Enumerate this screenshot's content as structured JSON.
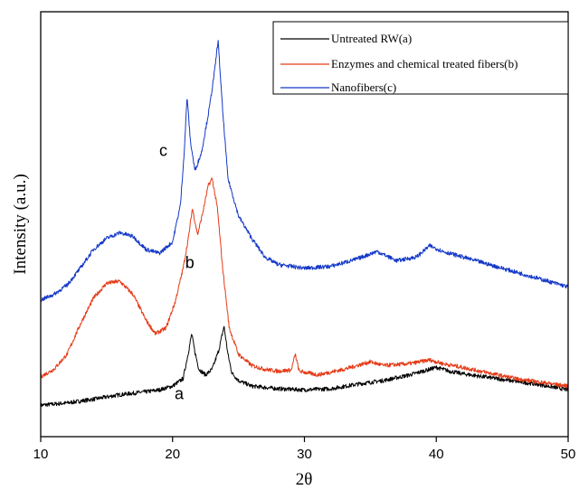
{
  "chart_data": {
    "type": "line",
    "xlabel": "2θ",
    "ylabel": "Intensity (a.u.)",
    "xlim": [
      10,
      50
    ],
    "ylim": [
      0,
      100
    ],
    "xticks": [
      "10",
      "20",
      "30",
      "40",
      "50"
    ],
    "yticks_shown": false,
    "grid": false,
    "legend_position": "top-right",
    "series": [
      {
        "name": "Untreated RW(a)",
        "label": "a",
        "color": "#000000",
        "points": [
          [
            10,
            1.4
          ],
          [
            12,
            2.0
          ],
          [
            14,
            3.0
          ],
          [
            16,
            4.2
          ],
          [
            17,
            4.6
          ],
          [
            18,
            5.0
          ],
          [
            19,
            5.5
          ],
          [
            20,
            6.5
          ],
          [
            20.8,
            8.5
          ],
          [
            21.2,
            15.5
          ],
          [
            21.45,
            20.5
          ],
          [
            21.7,
            15.5
          ],
          [
            22.0,
            11.0
          ],
          [
            22.5,
            9.5
          ],
          [
            23.0,
            11.0
          ],
          [
            23.5,
            16.0
          ],
          [
            23.9,
            22.5
          ],
          [
            24.2,
            15.0
          ],
          [
            24.5,
            10.0
          ],
          [
            25,
            8.0
          ],
          [
            26,
            6.5
          ],
          [
            28,
            5.8
          ],
          [
            30,
            5.5
          ],
          [
            32,
            5.8
          ],
          [
            34,
            7.0
          ],
          [
            36,
            8.0
          ],
          [
            38,
            9.5
          ],
          [
            39,
            10.5
          ],
          [
            40,
            11.5
          ],
          [
            41,
            10.5
          ],
          [
            42,
            9.8
          ],
          [
            44,
            8.8
          ],
          [
            46,
            7.8
          ],
          [
            48,
            6.8
          ],
          [
            50,
            5.5
          ]
        ]
      },
      {
        "name": "Enzymes and chemical treated fibers(b)",
        "label": "b",
        "color": "#e53a16",
        "points": [
          [
            10,
            9.0
          ],
          [
            11,
            11.0
          ],
          [
            12,
            15.0
          ],
          [
            13,
            23.0
          ],
          [
            14,
            30.0
          ],
          [
            15,
            34.0
          ],
          [
            16,
            34.5
          ],
          [
            17,
            31.0
          ],
          [
            18,
            24.0
          ],
          [
            18.7,
            20.5
          ],
          [
            19.5,
            22.0
          ],
          [
            20.2,
            29.0
          ],
          [
            20.8,
            38.0
          ],
          [
            21.2,
            46.0
          ],
          [
            21.5,
            54.0
          ],
          [
            21.9,
            47.0
          ],
          [
            22.3,
            53.0
          ],
          [
            22.7,
            60.0
          ],
          [
            23.0,
            62.0
          ],
          [
            23.4,
            54.0
          ],
          [
            23.8,
            38.0
          ],
          [
            24.3,
            22.0
          ],
          [
            25,
            15.0
          ],
          [
            26,
            12.0
          ],
          [
            27,
            11.0
          ],
          [
            28,
            10.5
          ],
          [
            29,
            10.8
          ],
          [
            29.3,
            15.0
          ],
          [
            29.6,
            10.5
          ],
          [
            31,
            9.5
          ],
          [
            33,
            11.0
          ],
          [
            34,
            12.0
          ],
          [
            35,
            13.0
          ],
          [
            36,
            12.0
          ],
          [
            38,
            12.5
          ],
          [
            39.5,
            13.5
          ],
          [
            40.5,
            12.5
          ],
          [
            42,
            11.5
          ],
          [
            44,
            10.0
          ],
          [
            46,
            8.5
          ],
          [
            48,
            7.5
          ],
          [
            50,
            6.5
          ]
        ]
      },
      {
        "name": "Nanofibers(c)",
        "label": "c",
        "color": "#1438c8",
        "points": [
          [
            10,
            29.5
          ],
          [
            11,
            31.0
          ],
          [
            12,
            33.5
          ],
          [
            13,
            38.0
          ],
          [
            14,
            43.0
          ],
          [
            15,
            46.0
          ],
          [
            16,
            47.5
          ],
          [
            17,
            46.5
          ],
          [
            18,
            43.0
          ],
          [
            19,
            42.0
          ],
          [
            20,
            45.0
          ],
          [
            20.6,
            55.0
          ],
          [
            20.9,
            70.0
          ],
          [
            21.1,
            84.0
          ],
          [
            21.35,
            72.0
          ],
          [
            21.7,
            64.0
          ],
          [
            22.2,
            69.0
          ],
          [
            22.8,
            81.0
          ],
          [
            23.2,
            91.0
          ],
          [
            23.45,
            99.0
          ],
          [
            23.8,
            80.0
          ],
          [
            24.2,
            62.0
          ],
          [
            25,
            52.0
          ],
          [
            26,
            46.0
          ],
          [
            27,
            41.0
          ],
          [
            28,
            39.0
          ],
          [
            30,
            38.0
          ],
          [
            32,
            38.5
          ],
          [
            34,
            40.5
          ],
          [
            35.5,
            42.5
          ],
          [
            37,
            40.0
          ],
          [
            38.5,
            41.0
          ],
          [
            39.5,
            44.0
          ],
          [
            40.5,
            42.5
          ],
          [
            42,
            41.0
          ],
          [
            44,
            39.0
          ],
          [
            46,
            37.0
          ],
          [
            48,
            35.0
          ],
          [
            50,
            33.0
          ]
        ]
      }
    ],
    "annotations": [
      {
        "text": "a",
        "x": 20.5,
        "y": 3.0
      },
      {
        "text": "b",
        "x": 21.3,
        "y": 38.0
      },
      {
        "text": "c",
        "x": 19.3,
        "y": 68.0
      }
    ]
  }
}
